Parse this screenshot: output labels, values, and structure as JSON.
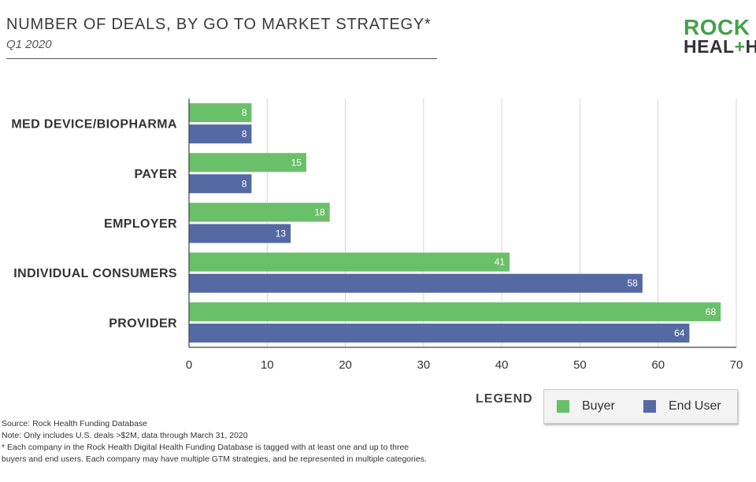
{
  "header": {
    "title": "NUMBER OF DEALS, BY GO TO MARKET STRATEGY*",
    "subtitle": "Q1 2020",
    "logo_line1": "ROCK",
    "logo_line2_a": "HEAL",
    "logo_line2_plus": "+",
    "logo_line2_b": "H"
  },
  "legend": {
    "title": "LEGEND",
    "items": [
      {
        "label": "Buyer",
        "color": "#6abf69"
      },
      {
        "label": "End User",
        "color": "#5569a3"
      }
    ]
  },
  "notes": {
    "source": "Source: Rock Health Funding Database",
    "note": "Note: Only includes U.S. deals >$2M, data through March 31, 2020",
    "footnote_1": "* Each company in the Rock Health Digital Health Funding Database is tagged with at least one and up to three",
    "footnote_2": "buyers and end users. Each company may have multiple GTM strategies, and be represented in multiple categories."
  },
  "chart_data": {
    "type": "bar",
    "orientation": "horizontal",
    "categories": [
      "MED DEVICE/BIOPHARMA",
      "PAYER",
      "EMPLOYER",
      "INDIVIDUAL CONSUMERS",
      "PROVIDER"
    ],
    "series": [
      {
        "name": "Buyer",
        "color": "#6abf69",
        "values": [
          8,
          15,
          18,
          41,
          68
        ]
      },
      {
        "name": "End User",
        "color": "#5569a3",
        "values": [
          8,
          8,
          13,
          58,
          64
        ]
      }
    ],
    "xlim": [
      0,
      70
    ],
    "xticks": [
      0,
      10,
      20,
      30,
      40,
      50,
      60,
      70
    ],
    "grid": true,
    "data_labels": true,
    "legend_position": "bottom-right"
  }
}
